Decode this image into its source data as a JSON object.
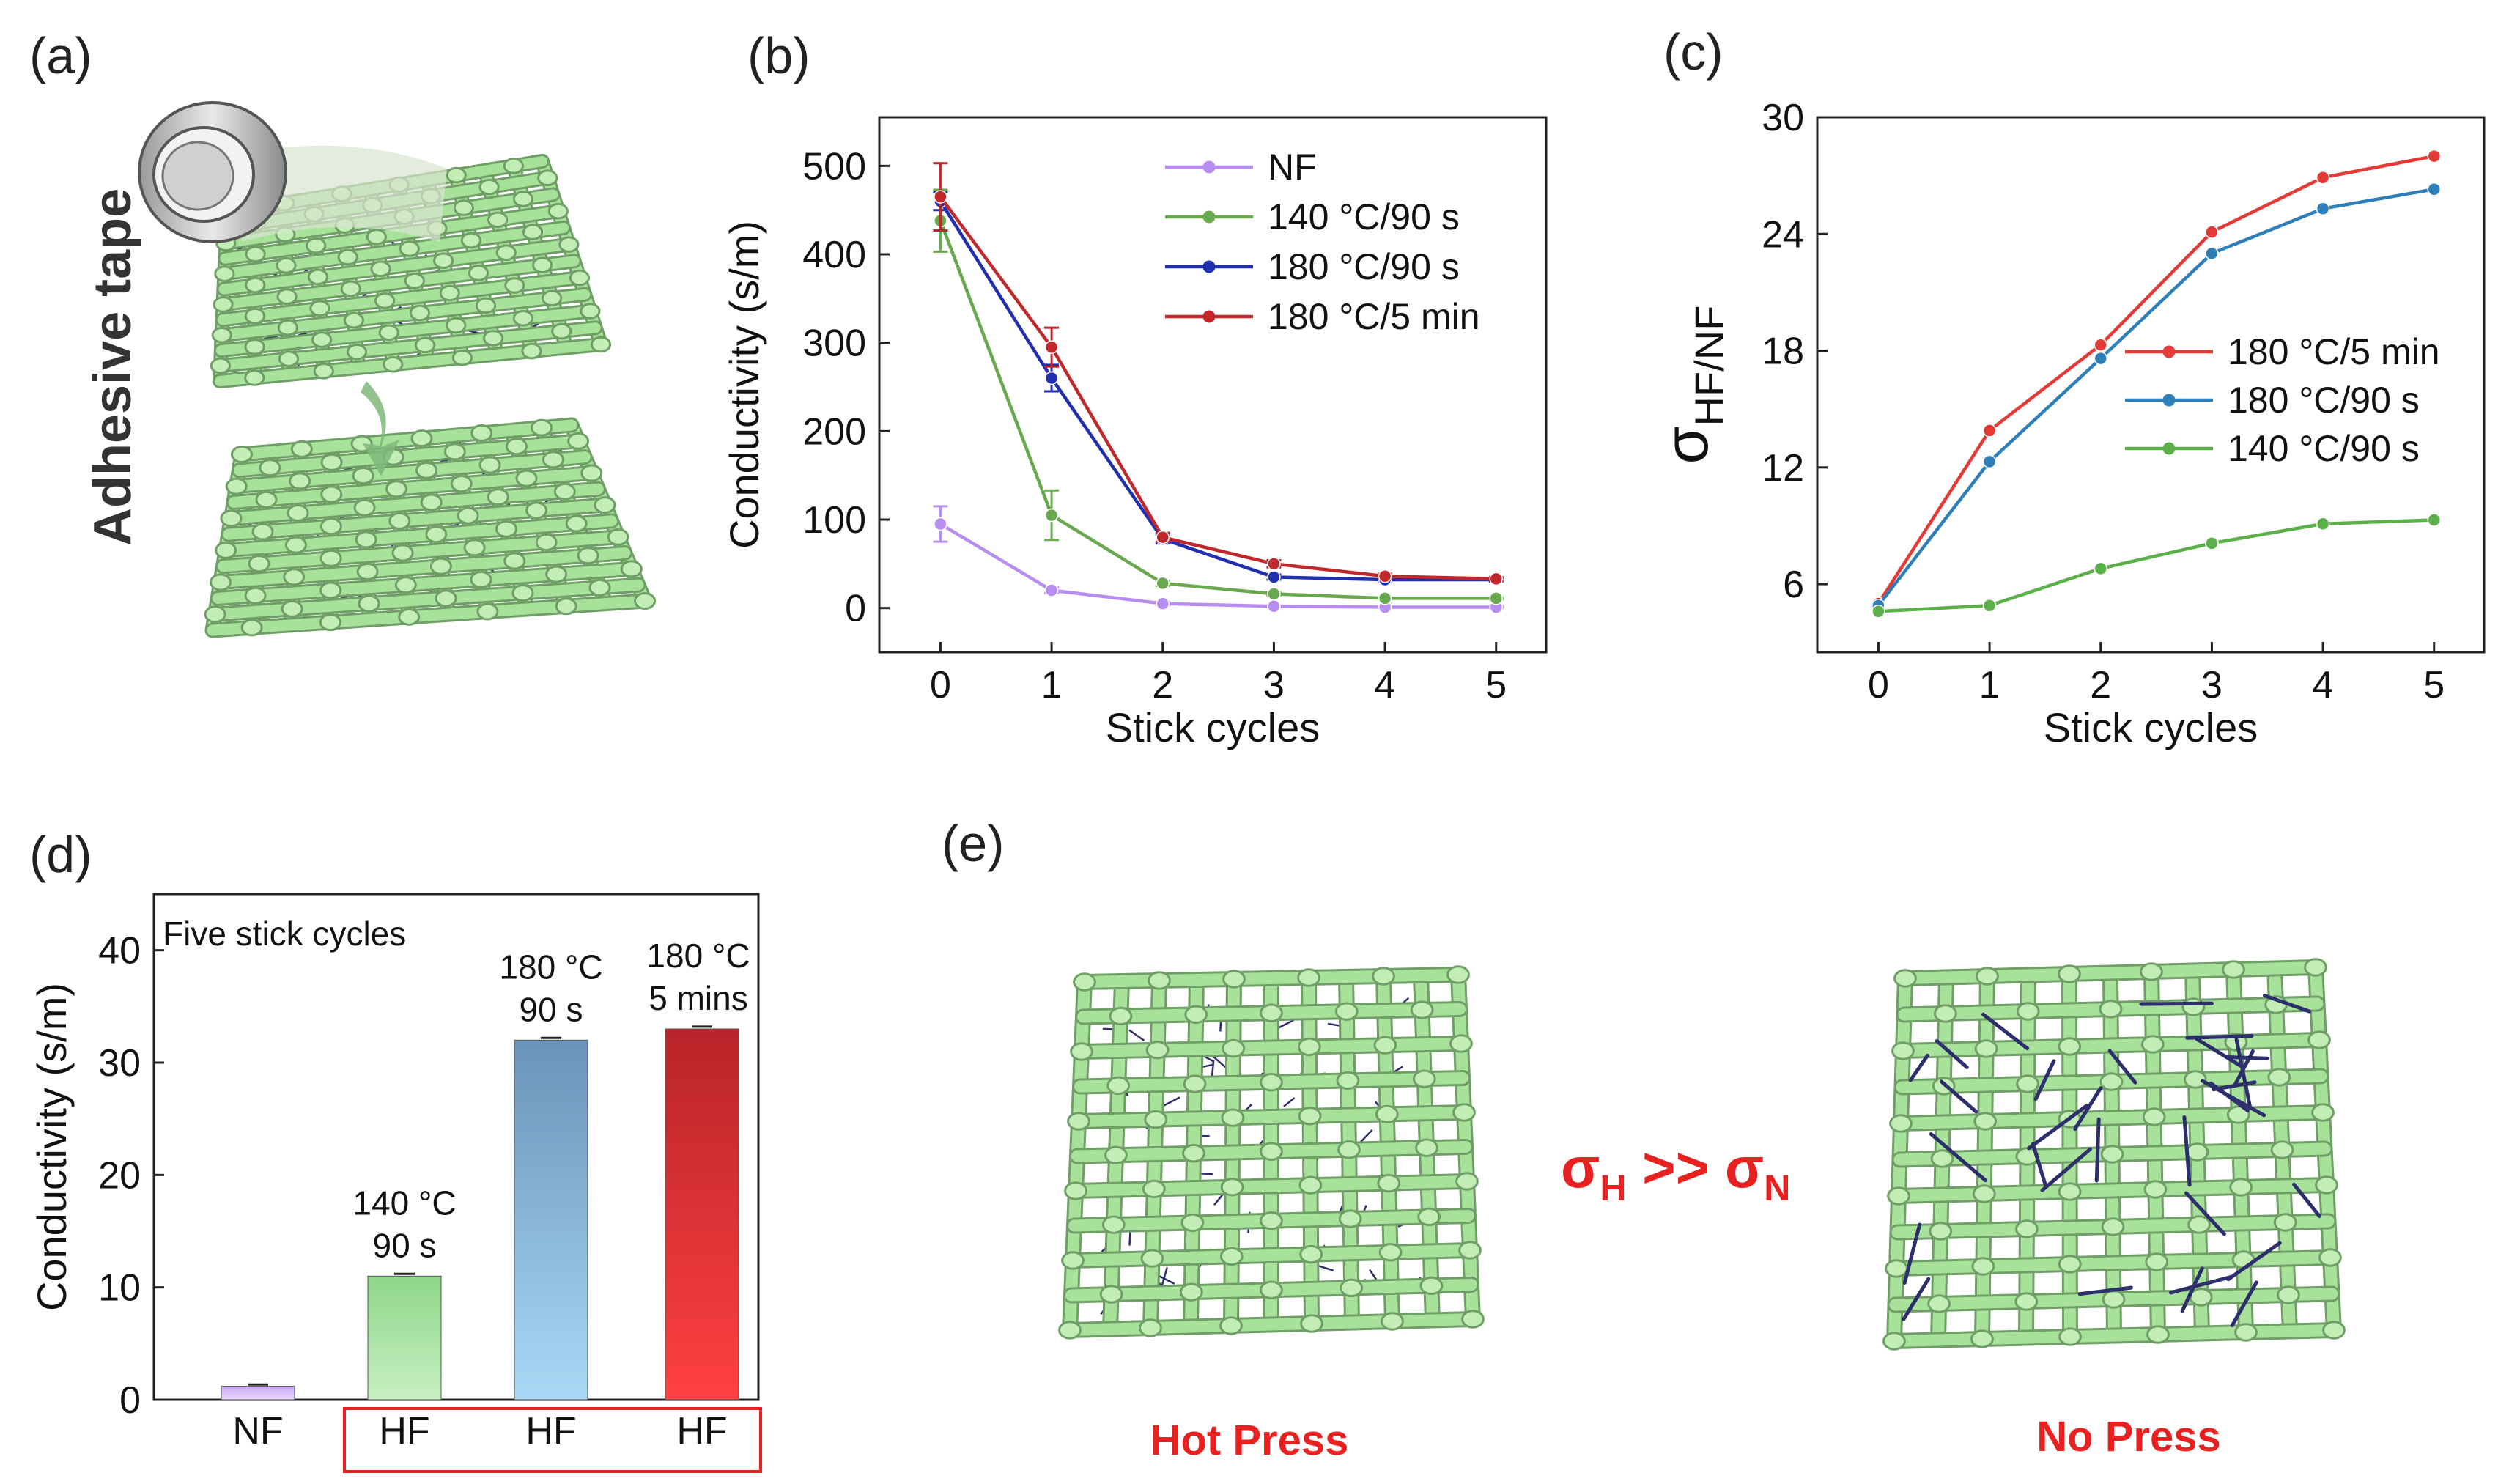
{
  "panels": {
    "a": {
      "label": "(a)",
      "side_text": "Adhesive tape"
    },
    "b": {
      "label": "(b)"
    },
    "c": {
      "label": "(c)"
    },
    "d": {
      "label": "(d)"
    },
    "e": {
      "label": "(e)",
      "left_caption": "Hot Press",
      "right_caption": "No Press",
      "relation": {
        "main1": "σ",
        "sub1": "H",
        "op": " >> ",
        "main2": "σ",
        "sub2": "N"
      }
    }
  },
  "colors": {
    "nf": "#b78ef0",
    "c140": "#6aa84f",
    "c180_90": "#1f2fb0",
    "c180_5": "#c0282c",
    "c_red": "#e53935",
    "c_blue": "#2e7fb8",
    "c_green": "#5bb04a",
    "fabric": "#a8e29a",
    "fiber": "#2c2f6b",
    "highlight": "#e8201f"
  },
  "chart_data": [
    {
      "id": "b",
      "type": "line",
      "xlabel": "Stick cycles",
      "ylabel": "Conductivity (s/m)",
      "x": [
        0,
        1,
        2,
        3,
        4,
        5
      ],
      "xlim": [
        -0.55,
        5.45
      ],
      "ylim": [
        -50,
        555
      ],
      "xticks": [
        0,
        1,
        2,
        3,
        4,
        5
      ],
      "yticks": [
        0,
        100,
        200,
        300,
        400,
        500
      ],
      "legend_position": "top-right",
      "series": [
        {
          "name": "NF",
          "color_key": "nf",
          "values": [
            95,
            20,
            5,
            2,
            1,
            1
          ],
          "errors": [
            20,
            3,
            2,
            1,
            1,
            1
          ]
        },
        {
          "name": "140 °C/90 s",
          "color_key": "c140",
          "values": [
            438,
            105,
            28,
            16,
            11,
            11
          ],
          "errors": [
            35,
            28,
            3,
            2,
            1,
            1
          ]
        },
        {
          "name": "180 °C/90 s",
          "color_key": "c180_90",
          "values": [
            460,
            260,
            78,
            35,
            32,
            32
          ],
          "errors": [
            10,
            15,
            5,
            3,
            2,
            2
          ]
        },
        {
          "name": "180 °C/5 min",
          "color_key": "c180_5",
          "values": [
            465,
            295,
            80,
            50,
            36,
            33
          ],
          "errors": [
            38,
            22,
            5,
            4,
            3,
            2
          ]
        }
      ]
    },
    {
      "id": "c",
      "type": "line",
      "xlabel": "Stick cycles",
      "ylabel_main": "σ",
      "ylabel_sub": "HF/NF",
      "x": [
        0,
        1,
        2,
        3,
        4,
        5
      ],
      "xlim": [
        -0.55,
        5.45
      ],
      "ylim": [
        2.5,
        30
      ],
      "xticks": [
        0,
        1,
        2,
        3,
        4,
        5
      ],
      "yticks": [
        6,
        12,
        18,
        24,
        30
      ],
      "legend_position": "center-right",
      "series": [
        {
          "name": "180 °C/5 min",
          "color_key": "c_red",
          "values": [
            5.0,
            13.9,
            18.3,
            24.1,
            26.9,
            28.0
          ]
        },
        {
          "name": "180 °C/90 s",
          "color_key": "c_blue",
          "values": [
            4.9,
            12.3,
            17.6,
            23.0,
            25.3,
            26.3
          ]
        },
        {
          "name": "140 °C/90 s",
          "color_key": "c_green",
          "values": [
            4.6,
            4.9,
            6.8,
            8.1,
            9.1,
            9.3
          ]
        }
      ]
    },
    {
      "id": "d",
      "type": "bar",
      "ylabel": "Conductivity (s/m)",
      "ylim": [
        0,
        45
      ],
      "yticks": [
        0,
        10,
        20,
        30,
        40
      ],
      "annotation": "Five stick cycles",
      "bracket_note": "HF bars boxed in red",
      "categories": [
        "NF",
        "HF",
        "HF",
        "HF"
      ],
      "values": [
        1.2,
        11.0,
        32.0,
        33.0
      ],
      "errors": [
        0.15,
        0.2,
        0.2,
        0.2
      ],
      "bar_labels": [
        [],
        [
          "140 °C",
          "90 s"
        ],
        [
          "180 °C",
          "90 s"
        ],
        [
          "180 °C",
          "5 mins"
        ]
      ]
    }
  ]
}
